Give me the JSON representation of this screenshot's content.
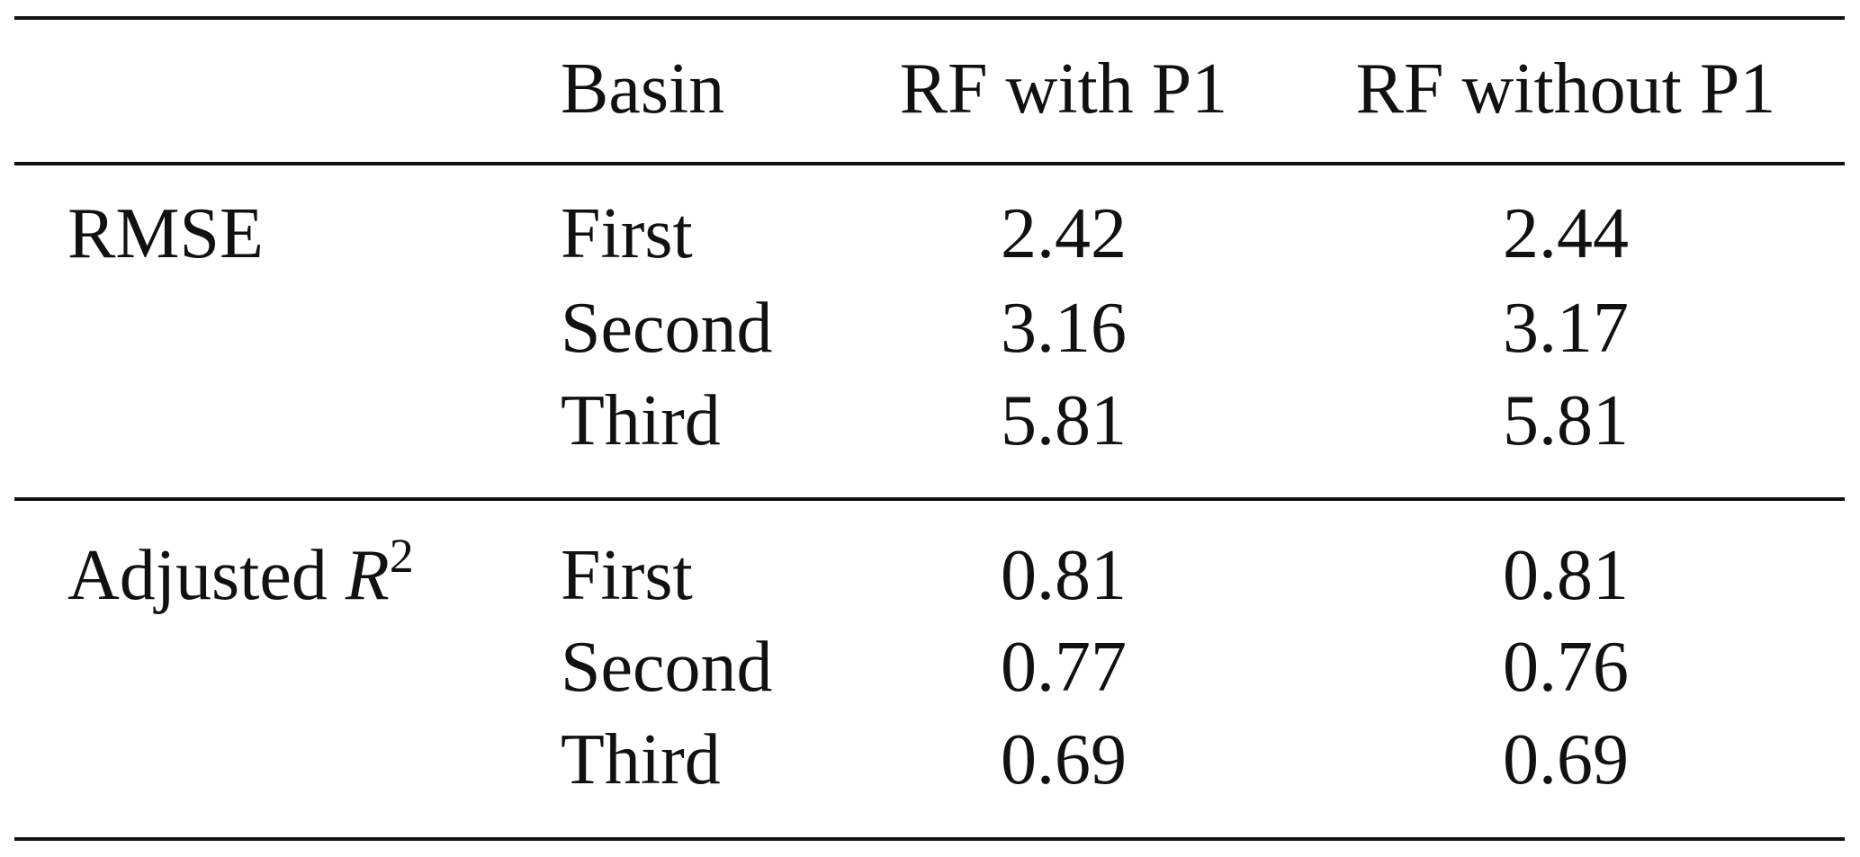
{
  "table": {
    "header": [
      "Basin",
      "RF with P1",
      "RF without P1"
    ],
    "groups": [
      {
        "label": "RMSE",
        "rows": [
          [
            "First",
            "2.42",
            "2.44"
          ],
          [
            "Second",
            "3.16",
            "3.17"
          ],
          [
            "Third",
            "5.81",
            "5.81"
          ]
        ]
      },
      {
        "label": "Adjusted",
        "symbol": "R",
        "superscript": "2",
        "rows": [
          [
            "First",
            "0.81",
            "0.81"
          ],
          [
            "Second",
            "0.77",
            "0.76"
          ],
          [
            "Third",
            "0.69",
            "0.69"
          ]
        ]
      }
    ]
  }
}
